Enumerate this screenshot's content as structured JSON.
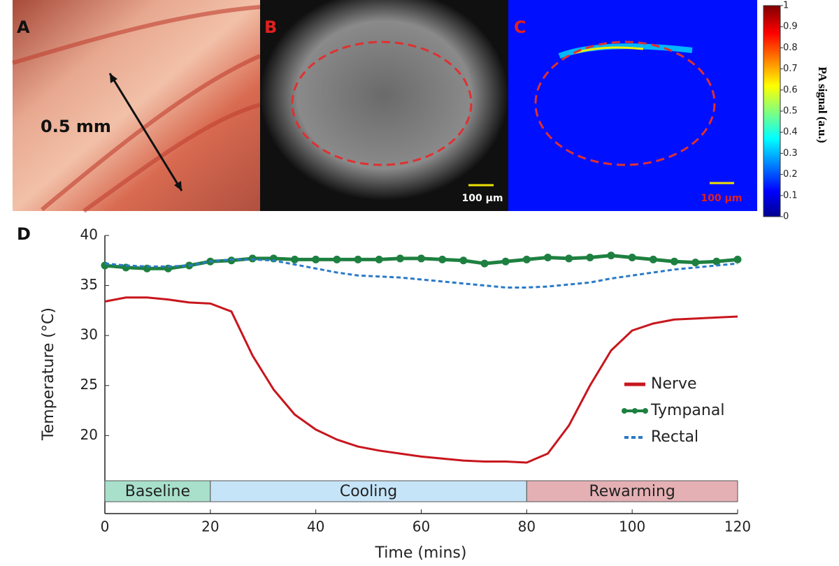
{
  "panels": {
    "a": {
      "label": "A",
      "scale_text": "0.5 mm"
    },
    "b": {
      "label": "B",
      "scale_text": "100 µm"
    },
    "c": {
      "label": "C",
      "scale_text": "100 µm"
    }
  },
  "colorbar": {
    "label": "PA signal (a.u.)",
    "ticks": [
      0,
      0.1,
      0.2,
      0.3,
      0.4,
      0.5,
      0.6,
      0.7,
      0.8,
      0.9,
      1
    ],
    "lim": [
      0,
      1
    ]
  },
  "chart_data": {
    "type": "line",
    "panel_label": "D",
    "x_label": "Time (mins)",
    "y_label": "Temperature (°C)",
    "x": [
      0,
      4,
      8,
      12,
      16,
      20,
      24,
      28,
      32,
      36,
      40,
      44,
      48,
      52,
      56,
      60,
      64,
      68,
      72,
      76,
      80,
      84,
      88,
      92,
      96,
      100,
      104,
      108,
      112,
      116,
      120
    ],
    "series": [
      {
        "name": "Nerve",
        "color": "#c8161d",
        "style": "solid",
        "values": [
          33.4,
          33.8,
          33.8,
          33.6,
          33.3,
          33.2,
          32.4,
          28,
          24.6,
          22.1,
          20.6,
          19.6,
          18.9,
          18.5,
          18.2,
          17.9,
          17.7,
          17.5,
          17.4,
          17.4,
          17.3,
          18.2,
          21,
          25,
          28.5,
          30.5,
          31.2,
          31.6,
          31.7,
          31.8,
          31.9
        ]
      },
      {
        "name": "Tympanal",
        "color": "#1e8040",
        "style": "markers",
        "values": [
          37,
          36.8,
          36.7,
          36.7,
          37,
          37.4,
          37.5,
          37.7,
          37.7,
          37.6,
          37.6,
          37.6,
          37.6,
          37.6,
          37.7,
          37.7,
          37.6,
          37.5,
          37.2,
          37.4,
          37.6,
          37.8,
          37.7,
          37.8,
          38,
          37.8,
          37.6,
          37.4,
          37.3,
          37.4,
          37.6
        ]
      },
      {
        "name": "Rectal",
        "color": "#2a7ac8",
        "style": "dashed",
        "values": [
          37.2,
          37,
          36.9,
          36.9,
          37,
          37.4,
          37.6,
          37.6,
          37.5,
          37.1,
          36.7,
          36.3,
          36,
          35.9,
          35.8,
          35.6,
          35.4,
          35.2,
          35,
          34.8,
          34.8,
          34.9,
          35.1,
          35.3,
          35.7,
          36,
          36.3,
          36.6,
          36.8,
          37,
          37.2
        ]
      }
    ],
    "phases": [
      {
        "label": "Baseline",
        "start": 0,
        "end": 20,
        "color": "#a8e0cc"
      },
      {
        "label": "Cooling",
        "start": 20,
        "end": 80,
        "color": "#c6e4f8"
      },
      {
        "label": "Rewarming",
        "start": 80,
        "end": 120,
        "color": "#e4b0b4"
      }
    ],
    "xlim": [
      0,
      120
    ],
    "ylim": [
      12.2,
      40
    ],
    "xticks": [
      0,
      20,
      40,
      60,
      80,
      100,
      120
    ],
    "yticks": [
      20,
      25,
      30,
      35,
      40
    ],
    "legend": "right"
  }
}
